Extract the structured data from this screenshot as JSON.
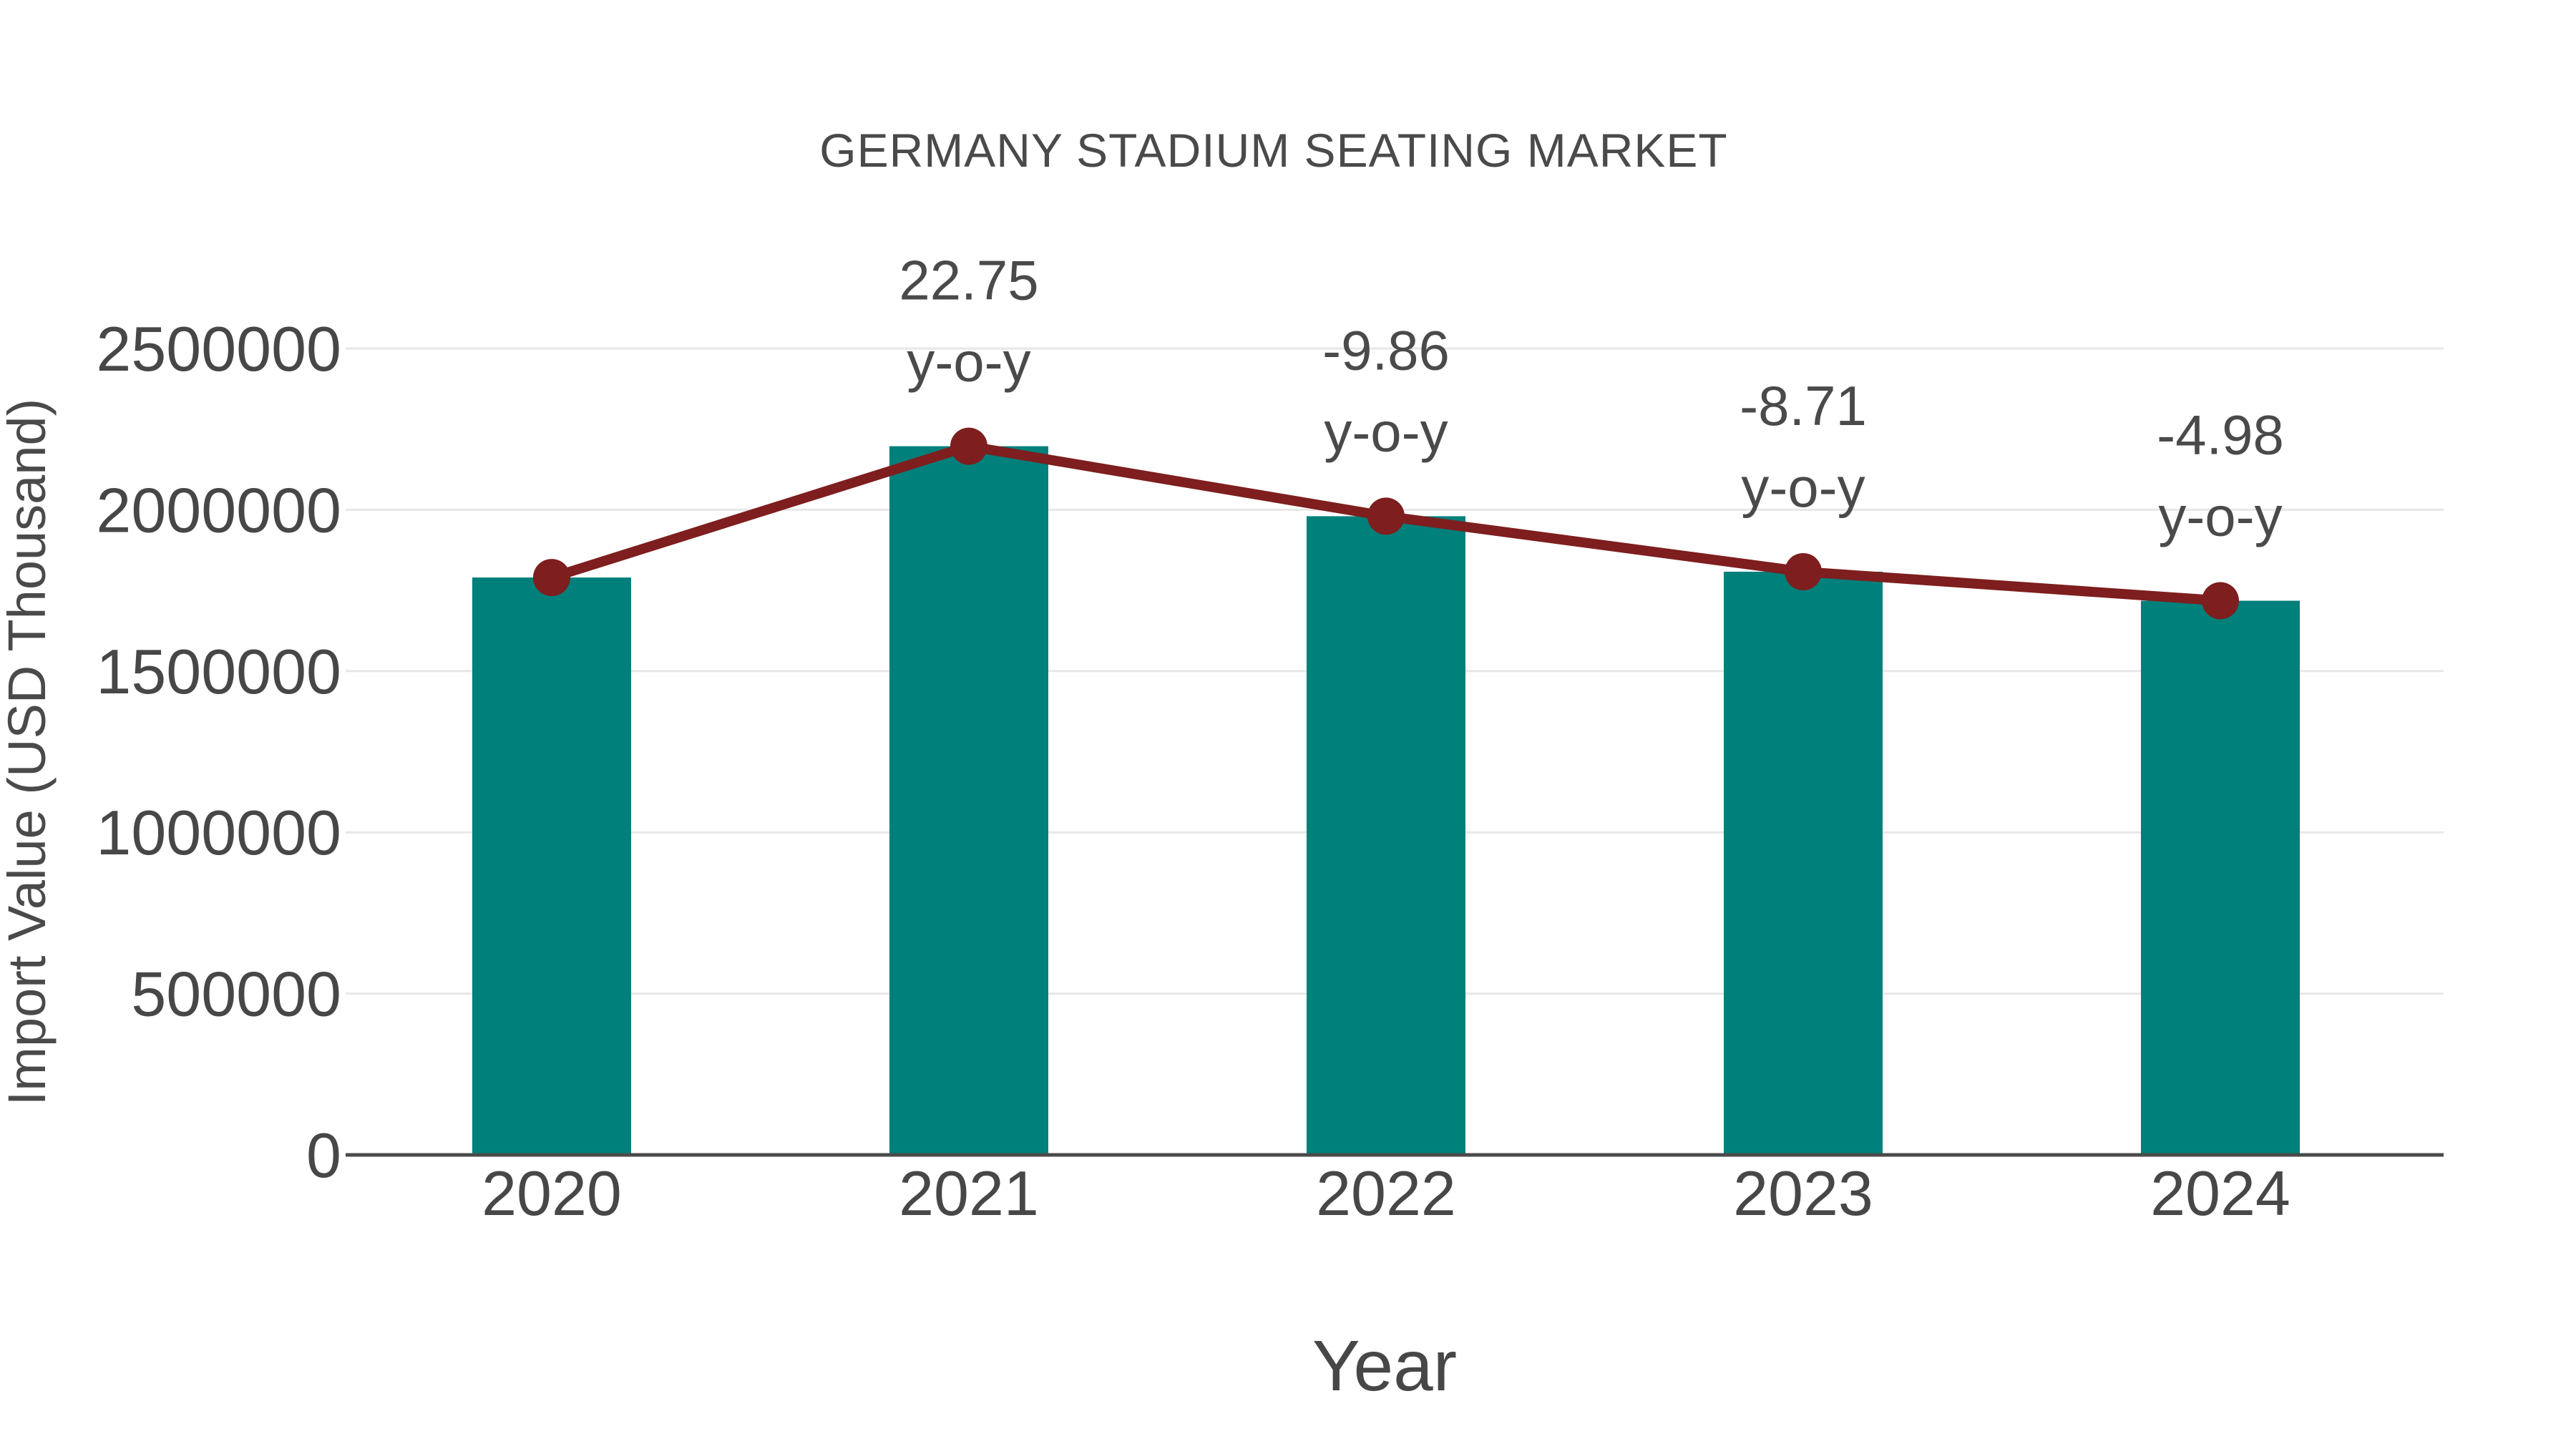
{
  "title": "GERMANY STADIUM SEATING MARKET",
  "axes": {
    "y_title": "Import Value (USD Thousand)",
    "x_title": "Year"
  },
  "colors": {
    "bar": "#00807B",
    "line": "#7E1E1E",
    "marker": "#7E1E1E",
    "text": "#4A4A4A",
    "tick_text": "#474747",
    "grid": "#E7E7E7",
    "axis": "#4A4A4A",
    "background": "#FFFFFF"
  },
  "chart_data": {
    "type": "bar",
    "title": "GERMANY STADIUM SEATING MARKET",
    "xlabel": "Year",
    "ylabel": "Import Value (USD Thousand)",
    "categories": [
      "2020",
      "2021",
      "2022",
      "2023",
      "2024"
    ],
    "series": [
      {
        "name": "Import Value (USD Thousand)",
        "type": "bar",
        "values": [
          1790000,
          2197000,
          1980000,
          1808000,
          1718000
        ]
      },
      {
        "name": "y-o-y change (%)",
        "type": "line",
        "overlay_of": "Import Value (USD Thousand)",
        "values_pct": [
          null,
          22.75,
          -9.86,
          -8.71,
          -4.98
        ]
      }
    ],
    "annotations": [
      {
        "category": "2021",
        "lines": [
          "22.75",
          "y-o-y"
        ]
      },
      {
        "category": "2022",
        "lines": [
          "-9.86",
          "y-o-y"
        ]
      },
      {
        "category": "2023",
        "lines": [
          "-8.71",
          "y-o-y"
        ]
      },
      {
        "category": "2024",
        "lines": [
          "-4.98",
          "y-o-y"
        ]
      }
    ],
    "ylim": [
      0,
      2500000
    ],
    "yticks": [
      0,
      500000,
      1000000,
      1500000,
      2000000,
      2500000
    ],
    "grid": "horizontal",
    "legend": "none"
  }
}
